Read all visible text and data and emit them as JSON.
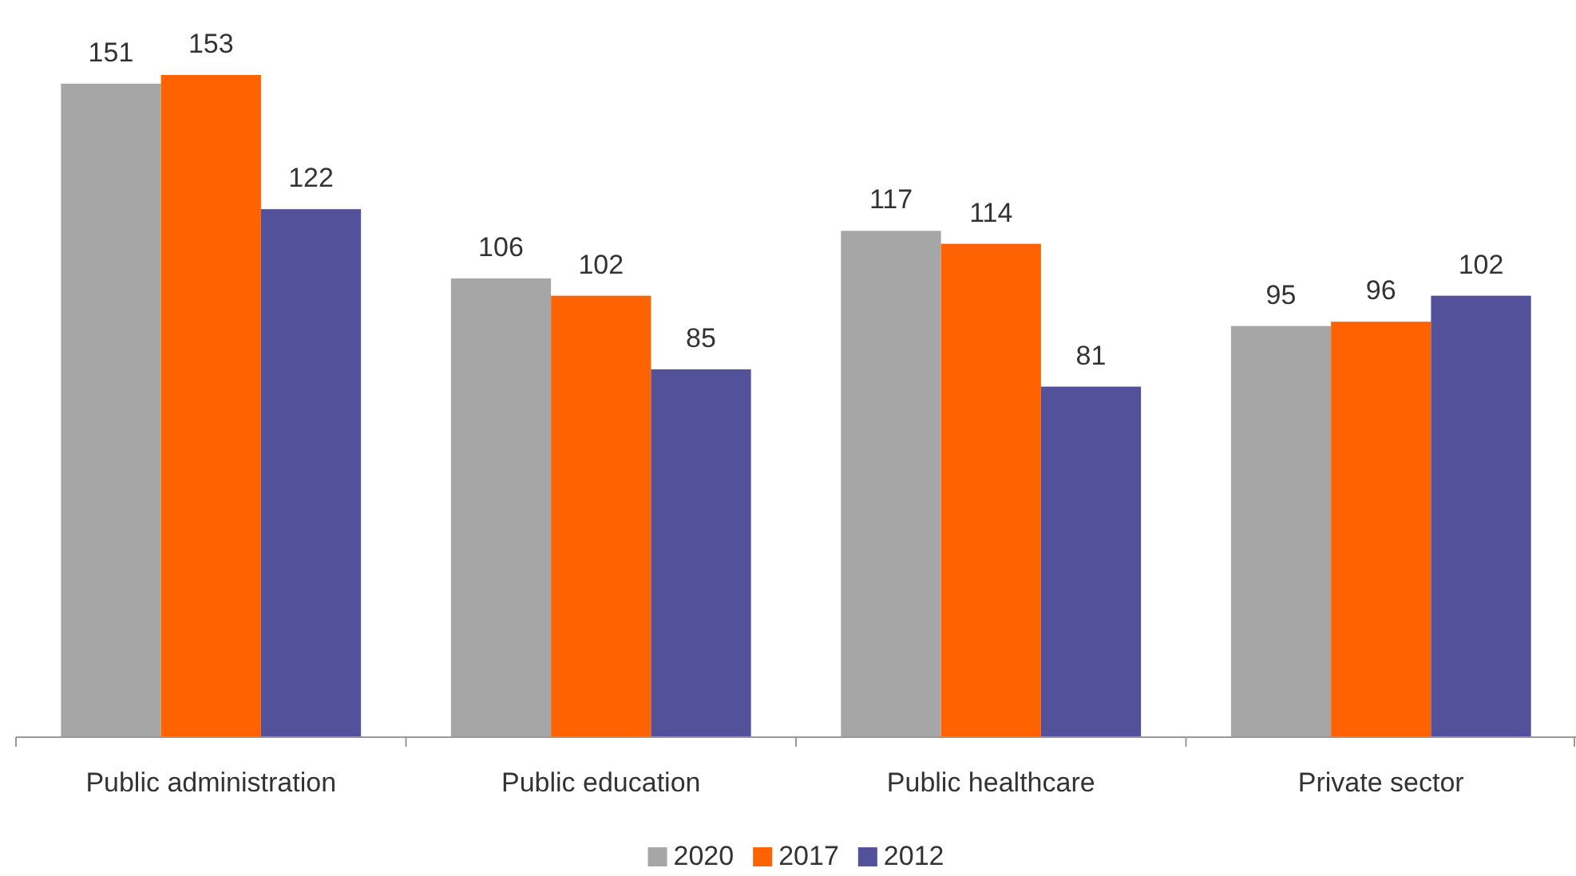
{
  "chart_data": {
    "type": "bar",
    "categories": [
      "Public administration",
      "Public education",
      "Public healthcare",
      "Private sector"
    ],
    "series": [
      {
        "name": "2020",
        "color": "#a6a6a6",
        "values": [
          151,
          106,
          117,
          95
        ]
      },
      {
        "name": "2017",
        "color": "#ff6200",
        "values": [
          153,
          102,
          114,
          96
        ]
      },
      {
        "name": "2012",
        "color": "#525199",
        "values": [
          122,
          85,
          81,
          102
        ]
      }
    ],
    "data_labels": true,
    "legend": "bottom",
    "grid": false
  }
}
